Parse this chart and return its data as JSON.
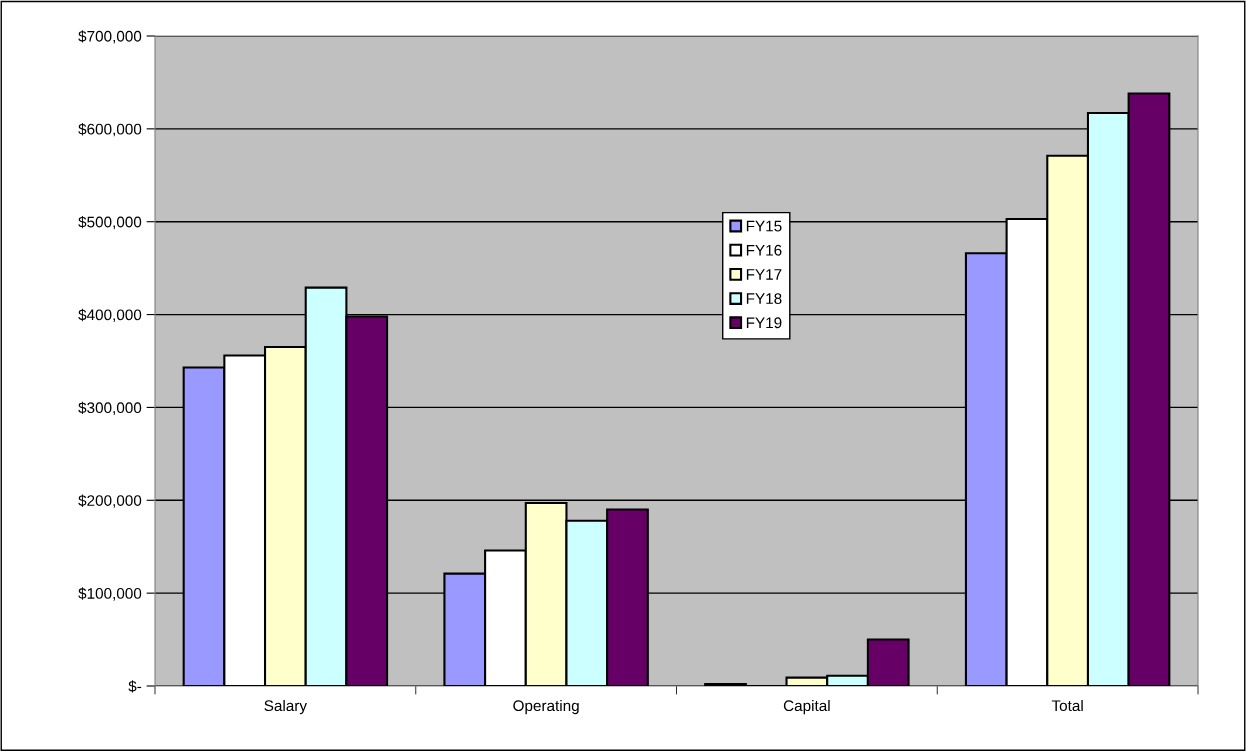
{
  "chart_data": {
    "type": "bar",
    "categories": [
      "Salary",
      "Operating",
      "Capital",
      "Total"
    ],
    "series": [
      {
        "name": "FY15",
        "color": "#9999ff",
        "values": [
          343000,
          121000,
          2000,
          466000
        ]
      },
      {
        "name": "FY16",
        "color": "#ffffff",
        "values": [
          356000,
          146000,
          null,
          503000
        ]
      },
      {
        "name": "FY17",
        "color": "#ffffcc",
        "values": [
          365000,
          197000,
          9000,
          571000
        ]
      },
      {
        "name": "FY18",
        "color": "#ccffff",
        "values": [
          429000,
          178000,
          11000,
          617000
        ]
      },
      {
        "name": "FY19",
        "color": "#660066",
        "values": [
          398000,
          190000,
          50000,
          638000
        ]
      }
    ],
    "ylim": [
      0,
      700000
    ],
    "yticks": [
      {
        "value": 0,
        "label": "$-"
      },
      {
        "value": 100000,
        "label": "$100,000"
      },
      {
        "value": 200000,
        "label": "$200,000"
      },
      {
        "value": 300000,
        "label": "$300,000"
      },
      {
        "value": 400000,
        "label": "$400,000"
      },
      {
        "value": 500000,
        "label": "$500,000"
      },
      {
        "value": 600000,
        "label": "$600,000"
      },
      {
        "value": 700000,
        "label": "$700,000"
      }
    ],
    "grid": "y",
    "legend": "center"
  }
}
